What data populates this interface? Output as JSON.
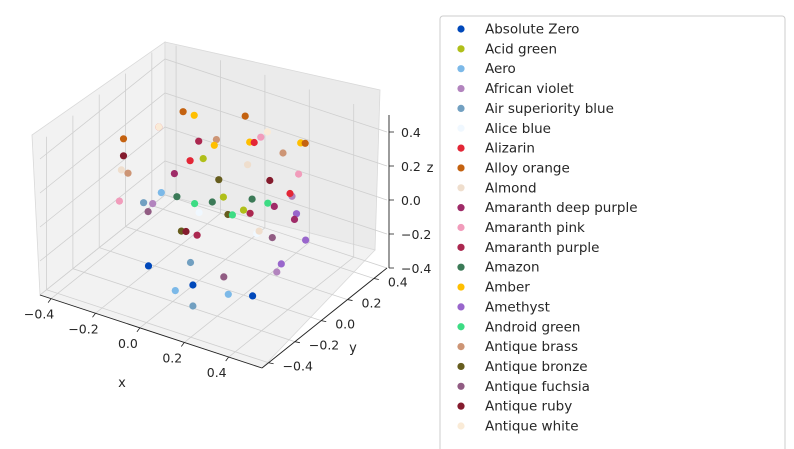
{
  "chart_data": {
    "type": "scatter",
    "projection": "3d",
    "title": "",
    "xlabel": "x",
    "ylabel": "y",
    "zlabel": "z",
    "xlim": [
      -0.45,
      0.55
    ],
    "ylim": [
      -0.45,
      0.5
    ],
    "zlim": [
      -0.4,
      0.5
    ],
    "xticks": [
      -0.4,
      -0.2,
      0.0,
      0.2,
      0.4
    ],
    "yticks": [
      -0.4,
      -0.2,
      0.0,
      0.2,
      0.4
    ],
    "zticks": [
      -0.4,
      -0.2,
      0.0,
      0.2,
      0.4
    ],
    "grid": true,
    "legend_position": "right",
    "series": [
      {
        "name": "Absolute Zero",
        "color": "#0048BA",
        "points": [
          [
            0.12,
            -0.25,
            -0.22
          ],
          [
            0.3,
            -0.1,
            -0.3
          ],
          [
            -0.05,
            -0.3,
            -0.15
          ]
        ]
      },
      {
        "name": "Acid green",
        "color": "#B0BF1A",
        "points": [
          [
            -0.1,
            0.2,
            0.15
          ],
          [
            0.05,
            0.1,
            0.05
          ],
          [
            0.2,
            0.0,
            0.1
          ]
        ]
      },
      {
        "name": "Aero",
        "color": "#7CB9E8",
        "points": [
          [
            0.25,
            -0.2,
            -0.25
          ],
          [
            0.1,
            -0.35,
            -0.2
          ],
          [
            -0.2,
            0.05,
            0.0
          ]
        ]
      },
      {
        "name": "African violet",
        "color": "#B284BE",
        "points": [
          [
            0.35,
            0.0,
            -0.2
          ],
          [
            -0.15,
            -0.1,
            0.05
          ],
          [
            0.3,
            0.2,
            0.1
          ]
        ]
      },
      {
        "name": "Air superiority blue",
        "color": "#72A0C1",
        "points": [
          [
            0.15,
            -0.3,
            -0.3
          ],
          [
            -0.25,
            0.0,
            -0.05
          ],
          [
            0.05,
            -0.15,
            -0.18
          ]
        ]
      },
      {
        "name": "Alice blue",
        "color": "#F0F8FF",
        "points": [
          [
            0.0,
            0.0,
            0.0
          ],
          [
            0.2,
            0.1,
            -0.1
          ]
        ]
      },
      {
        "name": "Alizarin",
        "color": "#E32636",
        "points": [
          [
            -0.3,
            0.2,
            0.25
          ],
          [
            0.1,
            0.25,
            0.3
          ],
          [
            0.35,
            0.1,
            0.2
          ],
          [
            -0.1,
            0.1,
            0.2
          ]
        ]
      },
      {
        "name": "Alloy orange",
        "color": "#C46210",
        "points": [
          [
            -0.25,
            0.3,
            0.3
          ],
          [
            0.0,
            0.35,
            0.35
          ],
          [
            0.3,
            0.3,
            0.35
          ],
          [
            -0.4,
            0.1,
            0.2
          ]
        ]
      },
      {
        "name": "Almond",
        "color": "#EFDECD",
        "points": [
          [
            -0.35,
            0.0,
            0.1
          ],
          [
            0.1,
            0.2,
            0.2
          ],
          [
            0.3,
            -0.05,
            0.05
          ]
        ]
      },
      {
        "name": "Amaranth deep purple",
        "color": "#9F2B68",
        "points": [
          [
            0.25,
            0.15,
            0.05
          ],
          [
            -0.2,
            0.15,
            0.05
          ],
          [
            0.4,
            0.05,
            0.1
          ]
        ]
      },
      {
        "name": "Amaranth pink",
        "color": "#F19CBB",
        "points": [
          [
            0.1,
            0.3,
            0.3
          ],
          [
            -0.3,
            -0.1,
            0.0
          ],
          [
            0.3,
            0.25,
            0.2
          ]
        ]
      },
      {
        "name": "Amaranth purple",
        "color": "#AB274F",
        "points": [
          [
            -0.15,
            0.25,
            0.2
          ],
          [
            0.2,
            0.05,
            0.05
          ],
          [
            0.05,
            -0.1,
            -0.05
          ]
        ]
      },
      {
        "name": "Amazon",
        "color": "#3B7A57",
        "points": [
          [
            0.0,
            0.1,
            0.0
          ],
          [
            -0.1,
            0.0,
            0.05
          ],
          [
            0.15,
            0.15,
            0.05
          ]
        ]
      },
      {
        "name": "Amber",
        "color": "#FFBF00",
        "points": [
          [
            -0.2,
            0.3,
            0.3
          ],
          [
            0.05,
            0.3,
            0.25
          ],
          [
            0.25,
            0.35,
            0.3
          ],
          [
            -0.05,
            0.2,
            0.25
          ]
        ]
      },
      {
        "name": "Amethyst",
        "color": "#9966CC",
        "points": [
          [
            0.45,
            0.05,
            0.0
          ],
          [
            0.4,
            -0.05,
            -0.1
          ],
          [
            0.35,
            0.15,
            0.05
          ]
        ]
      },
      {
        "name": "Android green",
        "color": "#3DDC84",
        "points": [
          [
            0.15,
            0.0,
            0.05
          ],
          [
            -0.05,
            0.05,
            0.0
          ],
          [
            0.25,
            0.1,
            0.1
          ]
        ]
      },
      {
        "name": "Antique brass",
        "color": "#CD9575",
        "points": [
          [
            -0.35,
            0.05,
            0.05
          ],
          [
            -0.1,
            0.3,
            0.2
          ],
          [
            0.2,
            0.3,
            0.25
          ]
        ]
      },
      {
        "name": "Antique bronze",
        "color": "#665D1E",
        "points": [
          [
            -0.05,
            -0.05,
            -0.1
          ],
          [
            0.1,
            0.05,
            0.0
          ],
          [
            0.0,
            0.15,
            0.1
          ]
        ]
      },
      {
        "name": "Antique fuchsia",
        "color": "#915C83",
        "points": [
          [
            0.2,
            -0.15,
            -0.2
          ],
          [
            -0.2,
            -0.05,
            -0.05
          ],
          [
            0.3,
            0.05,
            -0.05
          ]
        ]
      },
      {
        "name": "Antique ruby",
        "color": "#841B2D",
        "points": [
          [
            -0.4,
            0.1,
            0.1
          ],
          [
            0.0,
            -0.1,
            -0.05
          ],
          [
            0.2,
            0.2,
            0.15
          ]
        ]
      },
      {
        "name": "Antique white",
        "color": "#FAEBD7",
        "points": [
          [
            -0.3,
            0.2,
            0.25
          ],
          [
            0.1,
            0.35,
            0.3
          ]
        ]
      }
    ]
  }
}
